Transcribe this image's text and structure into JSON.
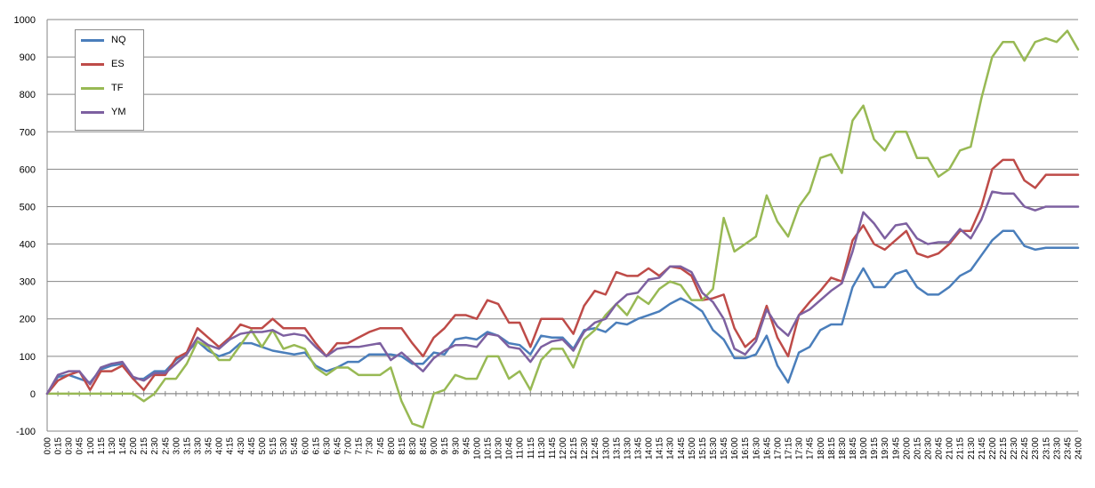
{
  "chart_data": {
    "type": "line",
    "title": "",
    "xlabel": "",
    "ylabel": "",
    "ylim": [
      -100,
      1000
    ],
    "ytick_step": 100,
    "grid": "horizontal",
    "legend_position": "top-left",
    "categories": [
      "0:00",
      "0:15",
      "0:30",
      "0:45",
      "1:00",
      "1:15",
      "1:30",
      "1:45",
      "2:00",
      "2:15",
      "2:30",
      "2:45",
      "3:00",
      "3:15",
      "3:30",
      "3:45",
      "4:00",
      "4:15",
      "4:30",
      "4:45",
      "5:00",
      "5:15",
      "5:30",
      "5:45",
      "6:00",
      "6:15",
      "6:30",
      "6:45",
      "7:00",
      "7:15",
      "7:30",
      "7:45",
      "8:00",
      "8:15",
      "8:30",
      "8:45",
      "9:00",
      "9:15",
      "9:30",
      "9:45",
      "10:00",
      "10:15",
      "10:30",
      "10:45",
      "11:00",
      "11:15",
      "11:30",
      "11:45",
      "12:00",
      "12:15",
      "12:30",
      "12:45",
      "13:00",
      "13:15",
      "13:30",
      "13:45",
      "14:00",
      "14:15",
      "14:30",
      "14:45",
      "15:00",
      "15:15",
      "15:30",
      "15:45",
      "16:00",
      "16:15",
      "16:30",
      "16:45",
      "17:00",
      "17:15",
      "17:30",
      "17:45",
      "18:00",
      "18:15",
      "18:30",
      "18:45",
      "19:00",
      "19:15",
      "19:30",
      "19:45",
      "20:00",
      "20:15",
      "20:30",
      "20:45",
      "21:00",
      "21:15",
      "21:30",
      "21:45",
      "22:00",
      "22:15",
      "22:30",
      "22:45",
      "23:00",
      "23:15",
      "23:30",
      "23:45",
      "24:00"
    ],
    "series": [
      {
        "name": "NQ",
        "color": "#4a7ebb",
        "values": [
          0,
          45,
          50,
          40,
          30,
          65,
          75,
          80,
          40,
          40,
          60,
          60,
          90,
          110,
          140,
          115,
          100,
          110,
          135,
          135,
          125,
          115,
          110,
          105,
          110,
          75,
          60,
          70,
          85,
          85,
          105,
          105,
          105,
          100,
          80,
          80,
          110,
          105,
          145,
          150,
          145,
          165,
          155,
          135,
          130,
          105,
          155,
          150,
          150,
          120,
          170,
          175,
          165,
          190,
          185,
          200,
          210,
          220,
          240,
          255,
          240,
          220,
          170,
          145,
          95,
          95,
          105,
          155,
          75,
          30,
          110,
          125,
          170,
          185,
          185,
          285,
          335,
          285,
          285,
          320,
          330,
          285,
          265,
          265,
          285,
          315,
          330,
          370,
          410,
          435,
          435,
          395,
          385,
          390,
          390,
          390,
          390
        ]
      },
      {
        "name": "ES",
        "color": "#be4b48",
        "values": [
          0,
          35,
          50,
          60,
          10,
          60,
          60,
          75,
          40,
          10,
          50,
          50,
          95,
          110,
          175,
          150,
          125,
          150,
          185,
          175,
          175,
          200,
          175,
          175,
          175,
          135,
          100,
          135,
          135,
          150,
          165,
          175,
          175,
          175,
          135,
          100,
          150,
          175,
          210,
          210,
          200,
          250,
          240,
          190,
          190,
          125,
          200,
          200,
          200,
          160,
          235,
          275,
          265,
          325,
          315,
          315,
          335,
          315,
          340,
          335,
          315,
          250,
          255,
          265,
          175,
          125,
          150,
          235,
          150,
          100,
          210,
          245,
          275,
          310,
          300,
          410,
          450,
          400,
          385,
          410,
          435,
          375,
          365,
          375,
          400,
          435,
          435,
          500,
          600,
          625,
          625,
          570,
          550,
          585,
          585,
          585,
          585
        ]
      },
      {
        "name": "TF",
        "color": "#98b954",
        "values": [
          0,
          0,
          0,
          0,
          0,
          0,
          0,
          0,
          0,
          -20,
          0,
          40,
          40,
          80,
          140,
          125,
          90,
          90,
          130,
          170,
          125,
          170,
          120,
          130,
          120,
          70,
          50,
          70,
          70,
          50,
          50,
          50,
          70,
          -20,
          -80,
          -90,
          0,
          10,
          50,
          40,
          40,
          100,
          100,
          40,
          60,
          10,
          90,
          120,
          120,
          70,
          145,
          170,
          210,
          240,
          210,
          260,
          240,
          280,
          300,
          290,
          250,
          250,
          280,
          470,
          380,
          400,
          420,
          530,
          460,
          420,
          500,
          540,
          630,
          640,
          590,
          730,
          770,
          680,
          650,
          700,
          700,
          630,
          630,
          580,
          600,
          650,
          660,
          790,
          900,
          940,
          940,
          890,
          940,
          950,
          940,
          970,
          920
        ]
      },
      {
        "name": "YM",
        "color": "#7d60a0",
        "values": [
          0,
          50,
          60,
          60,
          25,
          70,
          80,
          85,
          45,
          35,
          55,
          55,
          80,
          105,
          150,
          130,
          120,
          145,
          160,
          165,
          165,
          170,
          155,
          160,
          155,
          125,
          100,
          120,
          125,
          125,
          130,
          135,
          90,
          110,
          85,
          60,
          95,
          115,
          130,
          130,
          125,
          160,
          155,
          125,
          120,
          85,
          125,
          140,
          145,
          115,
          165,
          190,
          200,
          240,
          265,
          270,
          305,
          310,
          340,
          340,
          325,
          270,
          245,
          200,
          120,
          105,
          140,
          225,
          180,
          155,
          210,
          225,
          250,
          275,
          295,
          380,
          485,
          455,
          415,
          450,
          455,
          415,
          400,
          405,
          405,
          440,
          415,
          465,
          540,
          535,
          535,
          500,
          490,
          500,
          500,
          500,
          500
        ]
      }
    ]
  }
}
